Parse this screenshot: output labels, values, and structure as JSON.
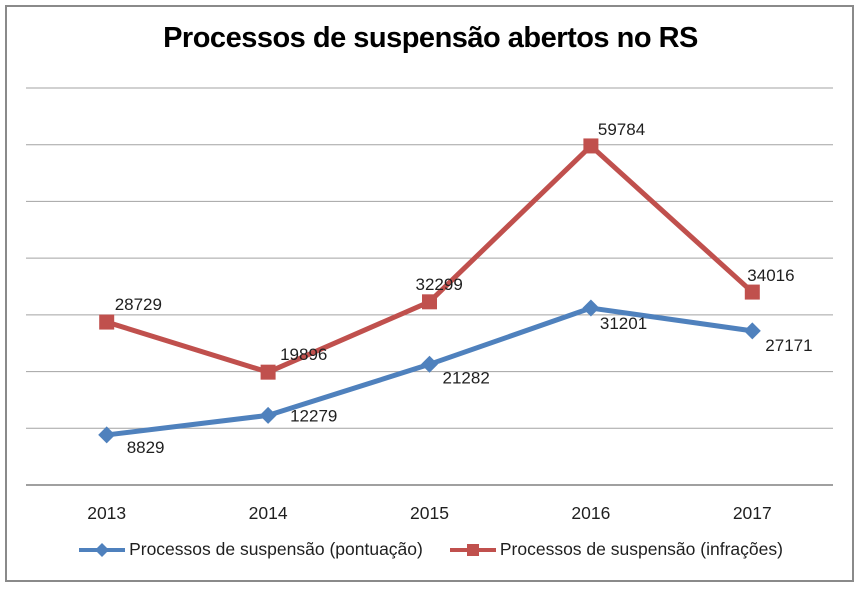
{
  "title": "Processos de suspensão abertos no RS",
  "chart_data": {
    "type": "line",
    "title": "Processos de suspensão abertos no RS",
    "categories": [
      "2013",
      "2014",
      "2015",
      "2016",
      "2017"
    ],
    "series": [
      {
        "name": "Processos de suspensão (pontuação)",
        "values": [
          8829,
          12279,
          21282,
          31201,
          27171
        ],
        "color": "#4F81BD",
        "marker": "diamond",
        "label_offsets": [
          [
            20,
            18
          ],
          [
            22,
            6
          ],
          [
            13,
            19
          ],
          [
            9,
            21
          ],
          [
            13,
            20
          ]
        ]
      },
      {
        "name": "Processos de suspensão (infrações)",
        "values": [
          28729,
          19896,
          32299,
          59784,
          34016
        ],
        "color": "#C0504D",
        "marker": "square",
        "label_offsets": [
          [
            8,
            -12
          ],
          [
            12,
            -12
          ],
          [
            -14,
            -12
          ],
          [
            7,
            -11
          ],
          [
            -5,
            -11
          ]
        ]
      }
    ],
    "xlabel": "",
    "ylabel": "",
    "ylim": [
      0,
      70000
    ],
    "gridline_step": 10000,
    "grid": true,
    "y_axis_labels_visible": false,
    "data_labels_visible": true,
    "legend_position": "bottom"
  },
  "colors": {
    "gridline": "#a3a3a3",
    "axis_line": "#808080",
    "frame_border": "#8a8a8a",
    "label_text": "#1f1f1f",
    "background": "#ffffff"
  }
}
